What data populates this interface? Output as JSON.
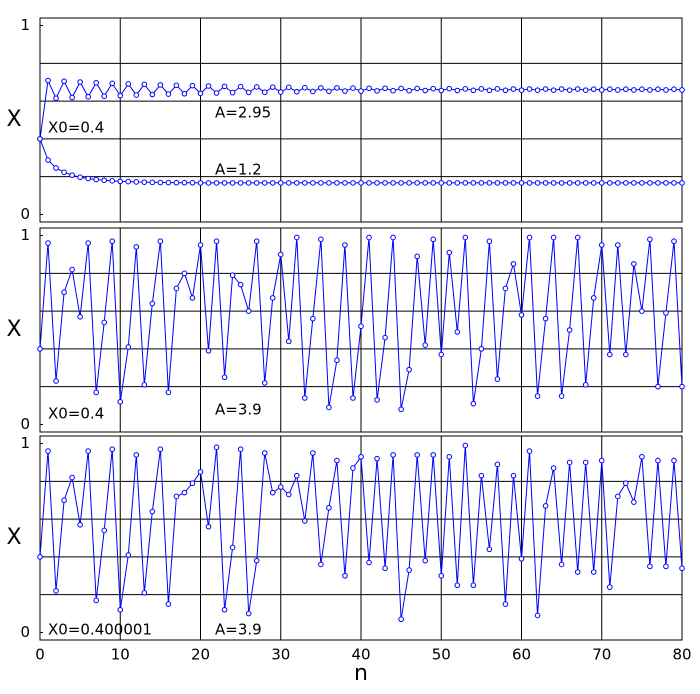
{
  "chart_data": [
    {
      "type": "line",
      "ylabel": "X",
      "xlim": [
        0,
        80
      ],
      "ylim": [
        -0.04,
        1.04
      ],
      "xtick_labels": false,
      "xticks": [
        0,
        10,
        20,
        30,
        40,
        50,
        60,
        70,
        80
      ],
      "yticks": [
        0,
        {
          "value": 0.2,
          "label": null
        },
        {
          "value": 0.4,
          "label": null
        },
        {
          "value": 0.6,
          "label": null
        },
        {
          "value": 0.8,
          "label": null
        },
        1
      ],
      "grid": true,
      "annotations": [
        "X0=0.4",
        "A=2.95",
        "A=1.2"
      ],
      "x": [
        0,
        1,
        2,
        3,
        4,
        5,
        6,
        7,
        8,
        9,
        10,
        11,
        12,
        13,
        14,
        15,
        16,
        17,
        18,
        19,
        20,
        21,
        22,
        23,
        24,
        25,
        26,
        27,
        28,
        29,
        30,
        31,
        32,
        33,
        34,
        35,
        36,
        37,
        38,
        39,
        40,
        41,
        42,
        43,
        44,
        45,
        46,
        47,
        48,
        49,
        50,
        51,
        52,
        53,
        54,
        55,
        56,
        57,
        58,
        59,
        60,
        61,
        62,
        63,
        64,
        65,
        66,
        67,
        68,
        69,
        70,
        71,
        72,
        73,
        74,
        75,
        76,
        77,
        78,
        79,
        80
      ],
      "series": [
        {
          "color": "#0000ff",
          "values": [
            0.4,
            0.709,
            0.615,
            0.705,
            0.619,
            0.701,
            0.623,
            0.697,
            0.626,
            0.694,
            0.629,
            0.691,
            0.632,
            0.689,
            0.635,
            0.686,
            0.637,
            0.684,
            0.639,
            0.682,
            0.641,
            0.68,
            0.643,
            0.678,
            0.645,
            0.677,
            0.646,
            0.675,
            0.647,
            0.674,
            0.648,
            0.673,
            0.65,
            0.671,
            0.651,
            0.67,
            0.652,
            0.67,
            0.653,
            0.669,
            0.653,
            0.668,
            0.654,
            0.668,
            0.655,
            0.667,
            0.655,
            0.667,
            0.656,
            0.666,
            0.656,
            0.666,
            0.656,
            0.665,
            0.657,
            0.665,
            0.657,
            0.665,
            0.657,
            0.664,
            0.658,
            0.664,
            0.658,
            0.664,
            0.658,
            0.664,
            0.658,
            0.664,
            0.658,
            0.663,
            0.659,
            0.663,
            0.659,
            0.663,
            0.659,
            0.663,
            0.659,
            0.663,
            0.659,
            0.663,
            0.659
          ]
        },
        {
          "color": "#0000ff",
          "values": [
            0.4,
            0.288,
            0.246,
            0.223,
            0.208,
            0.197,
            0.19,
            0.185,
            0.181,
            0.178,
            0.175,
            0.174,
            0.172,
            0.171,
            0.17,
            0.169,
            0.169,
            0.168,
            0.168,
            0.168,
            0.167,
            0.167,
            0.167,
            0.167,
            0.167,
            0.167,
            0.167,
            0.167,
            0.167,
            0.167,
            0.167,
            0.167,
            0.167,
            0.167,
            0.167,
            0.167,
            0.167,
            0.167,
            0.167,
            0.167,
            0.167,
            0.167,
            0.167,
            0.167,
            0.167,
            0.167,
            0.167,
            0.167,
            0.167,
            0.167,
            0.167,
            0.167,
            0.167,
            0.167,
            0.167,
            0.167,
            0.167,
            0.167,
            0.167,
            0.167,
            0.167,
            0.167,
            0.167,
            0.167,
            0.167,
            0.167,
            0.167,
            0.167,
            0.167,
            0.167,
            0.167,
            0.167,
            0.167,
            0.167,
            0.167,
            0.167,
            0.167,
            0.167,
            0.167,
            0.167,
            0.167
          ]
        }
      ]
    },
    {
      "type": "line",
      "ylabel": "X",
      "xlim": [
        0,
        80
      ],
      "ylim": [
        -0.04,
        1.04
      ],
      "xtick_labels": false,
      "xticks": [
        0,
        10,
        20,
        30,
        40,
        50,
        60,
        70,
        80
      ],
      "yticks": [
        0,
        {
          "value": 0.2,
          "label": null
        },
        {
          "value": 0.4,
          "label": null
        },
        {
          "value": 0.6,
          "label": null
        },
        {
          "value": 0.8,
          "label": null
        },
        1
      ],
      "grid": true,
      "annotations": [
        "X0=0.4",
        "A=3.9"
      ],
      "x": [
        0,
        1,
        2,
        3,
        4,
        5,
        6,
        7,
        8,
        9,
        10,
        11,
        12,
        13,
        14,
        15,
        16,
        17,
        18,
        19,
        20,
        21,
        22,
        23,
        24,
        25,
        26,
        27,
        28,
        29,
        30,
        31,
        32,
        33,
        34,
        35,
        36,
        37,
        38,
        39,
        40,
        41,
        42,
        43,
        44,
        45,
        46,
        47,
        48,
        49,
        50,
        51,
        52,
        53,
        54,
        55,
        56,
        57,
        58,
        59,
        60,
        61,
        62,
        63,
        64,
        65,
        66,
        67,
        68,
        69,
        70,
        71,
        72,
        73,
        74,
        75,
        76,
        77,
        78,
        79,
        80
      ],
      "series": [
        {
          "color": "#0000ff",
          "values": [
            0.4,
            0.96,
            0.23,
            0.7,
            0.82,
            0.57,
            0.96,
            0.17,
            0.54,
            0.97,
            0.12,
            0.41,
            0.94,
            0.21,
            0.64,
            0.97,
            0.17,
            0.72,
            0.8,
            0.67,
            0.95,
            0.39,
            0.97,
            0.25,
            0.79,
            0.74,
            0.6,
            0.97,
            0.22,
            0.67,
            0.9,
            0.44,
            0.99,
            0.14,
            0.56,
            0.98,
            0.09,
            0.34,
            0.95,
            0.14,
            0.52,
            0.99,
            0.13,
            0.46,
            0.99,
            0.08,
            0.29,
            0.89,
            0.42,
            0.98,
            0.37,
            0.91,
            0.49,
            0.99,
            0.11,
            0.4,
            0.97,
            0.24,
            0.72,
            0.85,
            0.58,
            0.99,
            0.15,
            0.56,
            0.99,
            0.15,
            0.5,
            0.99,
            0.21,
            0.67,
            0.95,
            0.37,
            0.95,
            0.37,
            0.85,
            0.6,
            0.98,
            0.2,
            0.59,
            0.97,
            0.2
          ]
        }
      ]
    },
    {
      "type": "line",
      "ylabel": "X",
      "xlabel": "n",
      "xlim": [
        0,
        80
      ],
      "ylim": [
        -0.04,
        1.04
      ],
      "xtick_labels": true,
      "xticks": [
        0,
        10,
        20,
        30,
        40,
        50,
        60,
        70,
        80
      ],
      "yticks": [
        0,
        {
          "value": 0.2,
          "label": null
        },
        {
          "value": 0.4,
          "label": null
        },
        {
          "value": 0.6,
          "label": null
        },
        {
          "value": 0.8,
          "label": null
        },
        1
      ],
      "grid": true,
      "annotations": [
        "X0=0.400001",
        "A=3.9"
      ],
      "x": [
        0,
        1,
        2,
        3,
        4,
        5,
        6,
        7,
        8,
        9,
        10,
        11,
        12,
        13,
        14,
        15,
        16,
        17,
        18,
        19,
        20,
        21,
        22,
        23,
        24,
        25,
        26,
        27,
        28,
        29,
        30,
        31,
        32,
        33,
        34,
        35,
        36,
        37,
        38,
        39,
        40,
        41,
        42,
        43,
        44,
        45,
        46,
        47,
        48,
        49,
        50,
        51,
        52,
        53,
        54,
        55,
        56,
        57,
        58,
        59,
        60,
        61,
        62,
        63,
        64,
        65,
        66,
        67,
        68,
        69,
        70,
        71,
        72,
        73,
        74,
        75,
        76,
        77,
        78,
        79,
        80
      ],
      "series": [
        {
          "color": "#0000ff",
          "values": [
            0.4,
            0.96,
            0.22,
            0.7,
            0.82,
            0.57,
            0.96,
            0.17,
            0.54,
            0.97,
            0.12,
            0.41,
            0.94,
            0.21,
            0.64,
            0.97,
            0.15,
            0.72,
            0.74,
            0.79,
            0.85,
            0.56,
            0.98,
            0.12,
            0.45,
            0.97,
            0.1,
            0.38,
            0.95,
            0.74,
            0.77,
            0.73,
            0.83,
            0.59,
            0.95,
            0.36,
            0.66,
            0.91,
            0.3,
            0.87,
            0.93,
            0.37,
            0.92,
            0.34,
            0.94,
            0.07,
            0.33,
            0.94,
            0.38,
            0.94,
            0.3,
            0.93,
            0.25,
            0.99,
            0.25,
            0.83,
            0.44,
            0.89,
            0.15,
            0.83,
            0.39,
            0.96,
            0.09,
            0.67,
            0.87,
            0.36,
            0.9,
            0.32,
            0.9,
            0.32,
            0.91,
            0.24,
            0.72,
            0.79,
            0.69,
            0.93,
            0.35,
            0.91,
            0.35,
            0.91,
            0.34
          ]
        }
      ]
    }
  ]
}
